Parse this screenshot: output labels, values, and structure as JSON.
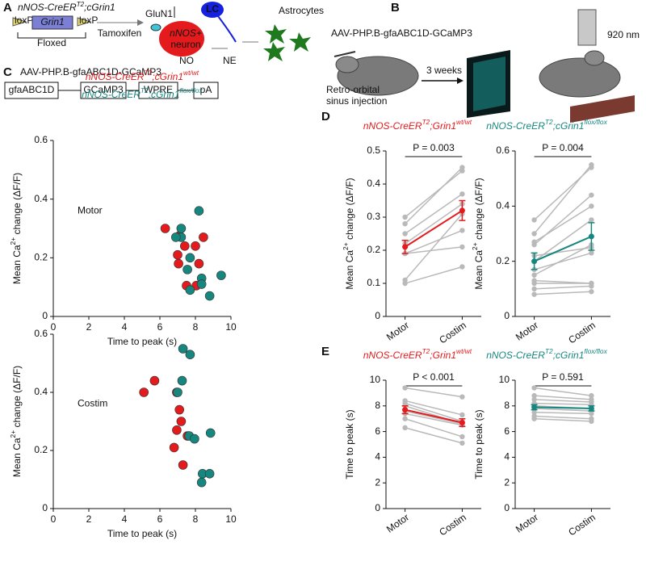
{
  "panel_labels": [
    "A",
    "B",
    "C",
    "D",
    "E"
  ],
  "diagram": {
    "a": {
      "genotype": [
        "nNOS-CreER",
        "T2",
        ";cGrin1"
      ],
      "loxp_left": "loxP",
      "gene": "Grin1",
      "loxp_right": "loxP",
      "floxed": "Floxed",
      "tamoxifen": "Tamoxifen",
      "glun1": "GluN1",
      "neuron": [
        "nNOS+",
        "neuron"
      ],
      "lc": "LC",
      "no": "NO",
      "ne": "NE",
      "astrocytes": "Astrocytes",
      "virus": "AAV-PHP.B-gfaABC1D-GCaMP3",
      "construct": [
        "gfaABC1D",
        "GCaMP3",
        "WPRE",
        "pA"
      ]
    },
    "b": {
      "virus": "AAV-PHP.B-gfaABC1D-GCaMP3",
      "injection": [
        "Retro-orbital",
        "sinus injection"
      ],
      "wait": "3 weeks",
      "wavelength": "920 nm"
    }
  },
  "chart_data": [
    {
      "type": "scatter",
      "label": "Motor",
      "xlabel": "Time to peak (s)",
      "ylabel": [
        "Mean Ca",
        "2+",
        " change (ΔF/F)"
      ],
      "xlim": [
        0,
        10
      ],
      "xticks": [
        0,
        2,
        4,
        6,
        8,
        10
      ],
      "ylim": [
        0,
        0.6
      ],
      "yticks": [
        0,
        0.2,
        0.4,
        0.6
      ],
      "series": [
        {
          "name": [
            "nNOS-CreER",
            "T2",
            ";cGrin1",
            "wt/wt"
          ],
          "color": "#e41a1c",
          "x": [
            6.3,
            7.1,
            7.0,
            7.05,
            7.4,
            7.5,
            8.05,
            8.45,
            8.2,
            8.0
          ],
          "values": [
            0.3,
            0.275,
            0.21,
            0.18,
            0.24,
            0.105,
            0.105,
            0.27,
            0.18,
            0.24
          ]
        },
        {
          "name": [
            "nNOS-CreER",
            "T2",
            ";cGrin1",
            "flox/flox"
          ],
          "color": "#16877f",
          "x": [
            7.2,
            7.2,
            6.9,
            8.2,
            7.55,
            7.7,
            8.35,
            8.8,
            9.45,
            8.35,
            7.7
          ],
          "values": [
            0.3,
            0.27,
            0.27,
            0.36,
            0.16,
            0.09,
            0.13,
            0.07,
            0.14,
            0.11,
            0.2
          ]
        }
      ]
    },
    {
      "type": "scatter",
      "label": "Costim",
      "xlabel": "Time to peak (s)",
      "ylabel": [
        "Mean Ca",
        "2+",
        " change (ΔF/F)"
      ],
      "xlim": [
        0,
        10
      ],
      "xticks": [
        0,
        2,
        4,
        6,
        8,
        10
      ],
      "ylim": [
        0,
        0.6
      ],
      "yticks": [
        0,
        0.2,
        0.4,
        0.6
      ],
      "series": [
        {
          "color": "#e41a1c",
          "x": [
            5.1,
            5.7,
            6.95,
            7.1,
            6.95,
            7.55,
            6.8,
            7.3,
            7.2
          ],
          "values": [
            0.4,
            0.44,
            0.4,
            0.34,
            0.27,
            0.25,
            0.21,
            0.15,
            0.3
          ]
        },
        {
          "color": "#16877f",
          "x": [
            7.3,
            7.7,
            7.25,
            7.0,
            7.65,
            7.95,
            8.85,
            8.4,
            8.8,
            8.35
          ],
          "values": [
            0.55,
            0.53,
            0.44,
            0.4,
            0.25,
            0.24,
            0.26,
            0.12,
            0.12,
            0.09
          ]
        }
      ]
    },
    {
      "type": "line",
      "title": [
        "nNOS-CreER",
        "T2",
        ";Grin1",
        "wt/wt"
      ],
      "annotation": "P = 0.003",
      "ylabel": [
        "Mean Ca",
        "2+",
        " change (ΔF/F)"
      ],
      "categories": [
        "Motor",
        "Costim"
      ],
      "ylim": [
        0,
        0.5
      ],
      "yticks": [
        0,
        0.1,
        0.2,
        0.3,
        0.4,
        0.5
      ],
      "series": [
        {
          "color": "#b9b9b9",
          "values": [
            0.3,
            0.44
          ]
        },
        {
          "color": "#b9b9b9",
          "values": [
            0.28,
            0.45
          ]
        },
        {
          "color": "#b9b9b9",
          "values": [
            0.25,
            0.37
          ]
        },
        {
          "color": "#b9b9b9",
          "values": [
            0.22,
            0.34
          ]
        },
        {
          "color": "#b9b9b9",
          "values": [
            0.19,
            0.26
          ]
        },
        {
          "color": "#b9b9b9",
          "values": [
            0.19,
            0.21
          ]
        },
        {
          "color": "#b9b9b9",
          "values": [
            0.11,
            0.31
          ]
        },
        {
          "color": "#b9b9b9",
          "values": [
            0.1,
            0.15
          ]
        },
        {
          "color": "#e41a1c",
          "values": [
            0.21,
            0.32
          ],
          "errors": [
            0.02,
            0.03
          ]
        }
      ]
    },
    {
      "type": "line",
      "title": [
        "nNOS-CreER",
        "T2",
        ";cGrin1",
        "flox/flox"
      ],
      "annotation": "P = 0.004",
      "ylabel": [
        "Mean Ca",
        "2+",
        " change (ΔF/F)"
      ],
      "categories": [
        "Motor",
        "Costim"
      ],
      "ylim": [
        0,
        0.6
      ],
      "yticks": [
        0,
        0.2,
        0.4,
        0.6
      ],
      "series": [
        {
          "color": "#b9b9b9",
          "values": [
            0.35,
            0.54
          ]
        },
        {
          "color": "#b9b9b9",
          "values": [
            0.3,
            0.55
          ]
        },
        {
          "color": "#b9b9b9",
          "values": [
            0.27,
            0.4
          ]
        },
        {
          "color": "#b9b9b9",
          "values": [
            0.26,
            0.44
          ]
        },
        {
          "color": "#b9b9b9",
          "values": [
            0.22,
            0.25
          ]
        },
        {
          "color": "#b9b9b9",
          "values": [
            0.2,
            0.35
          ]
        },
        {
          "color": "#b9b9b9",
          "values": [
            0.17,
            0.23
          ]
        },
        {
          "color": "#b9b9b9",
          "values": [
            0.15,
            0.26
          ]
        },
        {
          "color": "#b9b9b9",
          "values": [
            0.13,
            0.12
          ]
        },
        {
          "color": "#b9b9b9",
          "values": [
            0.12,
            0.12
          ]
        },
        {
          "color": "#b9b9b9",
          "values": [
            0.1,
            0.11
          ]
        },
        {
          "color": "#b9b9b9",
          "values": [
            0.08,
            0.09
          ]
        },
        {
          "color": "#16877f",
          "values": [
            0.2,
            0.29
          ],
          "errors": [
            0.03,
            0.05
          ]
        }
      ]
    },
    {
      "type": "line",
      "title": [
        "nNOS-CreER",
        "T2",
        ";Grin1",
        "wt/wt"
      ],
      "annotation": "P < 0.001",
      "ylabel": [
        "Time to peak (s)"
      ],
      "categories": [
        "Motor",
        "Costim"
      ],
      "ylim": [
        0,
        10
      ],
      "yticks": [
        0,
        2,
        4,
        6,
        8,
        10
      ],
      "series": [
        {
          "color": "#b9b9b9",
          "values": [
            9.4,
            8.7
          ]
        },
        {
          "color": "#b9b9b9",
          "values": [
            8.4,
            7.3
          ]
        },
        {
          "color": "#b9b9b9",
          "values": [
            8.2,
            6.8
          ]
        },
        {
          "color": "#b9b9b9",
          "values": [
            8.0,
            6.6
          ]
        },
        {
          "color": "#b9b9b9",
          "values": [
            7.6,
            6.6
          ]
        },
        {
          "color": "#b9b9b9",
          "values": [
            7.4,
            6.5
          ]
        },
        {
          "color": "#b9b9b9",
          "values": [
            7.0,
            5.6
          ]
        },
        {
          "color": "#b9b9b9",
          "values": [
            6.3,
            5.1
          ]
        },
        {
          "color": "#e41a1c",
          "values": [
            7.7,
            6.7
          ],
          "errors": [
            0.3,
            0.3
          ]
        }
      ]
    },
    {
      "type": "line",
      "title": [
        "nNOS-CreER",
        "T2",
        ";cGrin1",
        "flox/flox"
      ],
      "annotation": "P = 0.591",
      "ylabel": [
        "Time to peak (s)"
      ],
      "categories": [
        "Motor",
        "Costim"
      ],
      "ylim": [
        0,
        10
      ],
      "yticks": [
        0,
        2,
        4,
        6,
        8,
        10
      ],
      "series": [
        {
          "color": "#b9b9b9",
          "values": [
            9.4,
            8.8
          ]
        },
        {
          "color": "#b9b9b9",
          "values": [
            8.8,
            8.5
          ]
        },
        {
          "color": "#b9b9b9",
          "values": [
            8.5,
            8.3
          ]
        },
        {
          "color": "#b9b9b9",
          "values": [
            8.2,
            8.1
          ]
        },
        {
          "color": "#b9b9b9",
          "values": [
            8.0,
            7.8
          ]
        },
        {
          "color": "#b9b9b9",
          "values": [
            7.8,
            7.6
          ]
        },
        {
          "color": "#b9b9b9",
          "values": [
            7.5,
            7.4
          ]
        },
        {
          "color": "#b9b9b9",
          "values": [
            7.2,
            7.0
          ]
        },
        {
          "color": "#b9b9b9",
          "values": [
            7.0,
            6.8
          ]
        },
        {
          "color": "#16877f",
          "values": [
            7.9,
            7.8
          ],
          "errors": [
            0.2,
            0.2
          ]
        }
      ]
    }
  ]
}
